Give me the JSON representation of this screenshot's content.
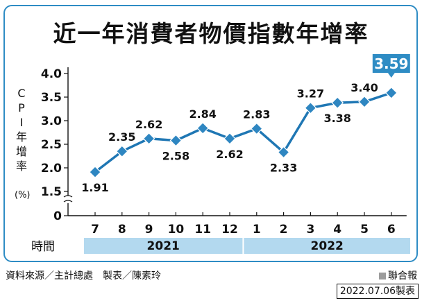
{
  "title": "近一年消費者物價指數年增率",
  "ylabel_chars": [
    "C",
    "P",
    "I",
    "年",
    "增",
    "率",
    "",
    "(%)"
  ],
  "credit": "資料來源／主計總處　製表／陳素玲",
  "brand": "聯合報",
  "date_stamp": "2022.07.06製表",
  "colors": {
    "frame": "#2e8cc4",
    "line": "#1f77b4",
    "marker": "#2e86c1",
    "latest_box": "#2e8cc4",
    "year_band": "#b3d9ef"
  },
  "chart_data": {
    "type": "line",
    "title": "近一年消費者物價指數年增率",
    "ylabel": "CPI年增率 (%)",
    "xlabel": "時間",
    "categories": [
      "7",
      "8",
      "9",
      "10",
      "11",
      "12",
      "1",
      "2",
      "3",
      "4",
      "5",
      "6"
    ],
    "years": [
      {
        "label": "2021",
        "span": 6
      },
      {
        "label": "2022",
        "span": 6
      }
    ],
    "values": [
      1.91,
      2.35,
      2.62,
      2.58,
      2.84,
      2.62,
      2.83,
      2.33,
      3.27,
      3.38,
      3.4,
      3.59
    ],
    "data_labels": [
      "1.91",
      "2.35",
      "2.62",
      "2.58",
      "2.84",
      "2.62",
      "2.83",
      "2.33",
      "3.27",
      "3.38",
      "3.40",
      "3.59"
    ],
    "label_positions": [
      "below",
      "above",
      "above",
      "below",
      "above",
      "below",
      "above",
      "below",
      "above",
      "below",
      "above",
      "callout"
    ],
    "yticks": [
      "4.0",
      "3.5",
      "3.0",
      "2.5",
      "2.0",
      "1.5",
      "0"
    ],
    "ytick_values": [
      4.0,
      3.5,
      3.0,
      2.5,
      2.0,
      1.5
    ],
    "ylim": [
      1.5,
      4.0
    ],
    "axis_break": true,
    "grid": false
  }
}
